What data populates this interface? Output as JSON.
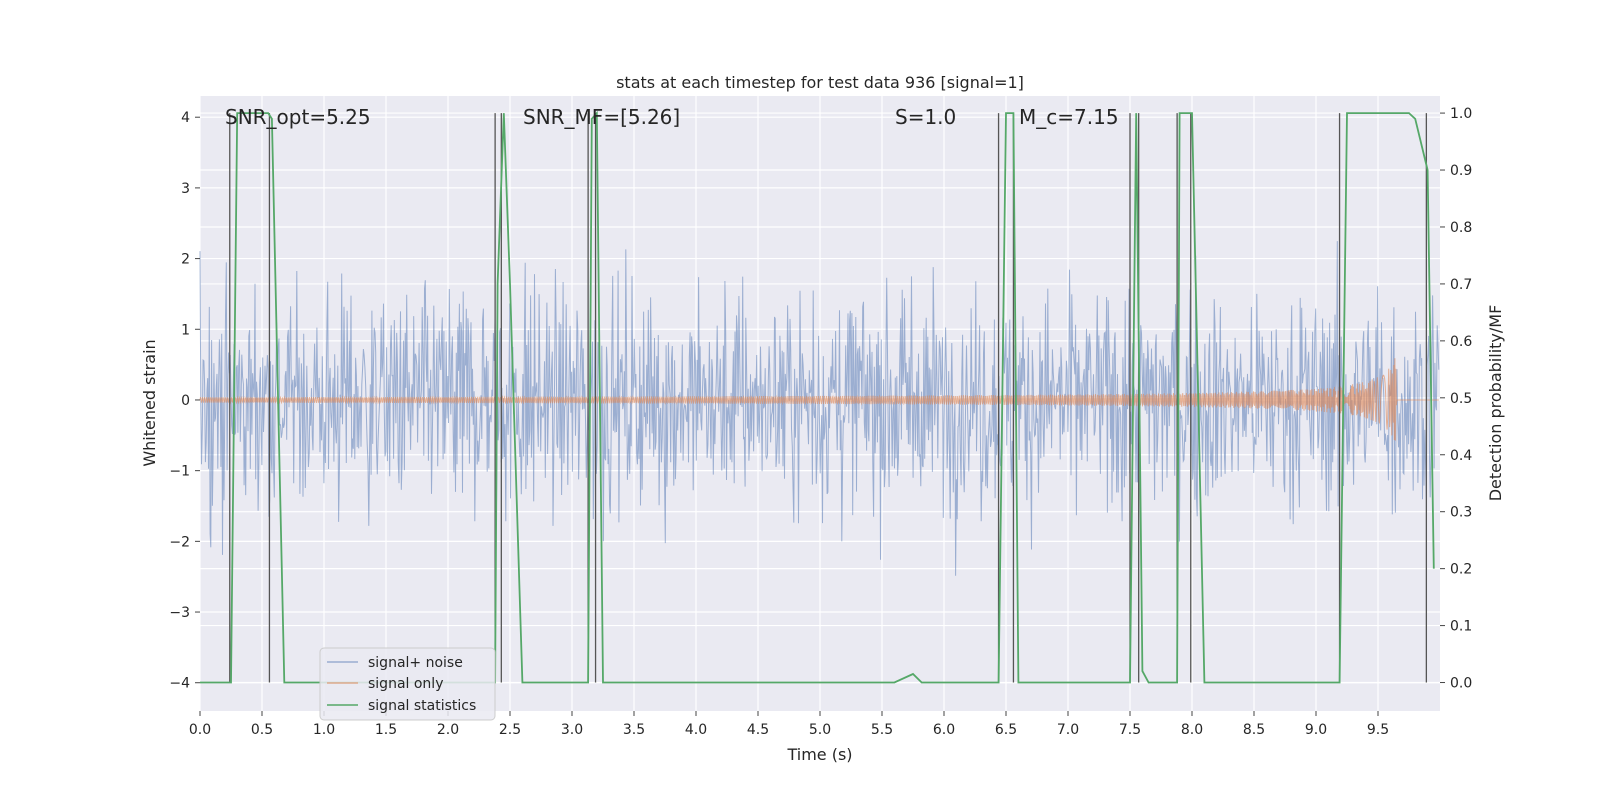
{
  "chart_data": {
    "type": "line",
    "title": "stats at each timestep for test data 936 [signal=1]",
    "xlabel": "Time (s)",
    "ylabel": "Whitened strain",
    "ylabel_right": "Detection probability/MF",
    "xlim": [
      0.0,
      10.0
    ],
    "ylim": [
      -4.4,
      4.3
    ],
    "ylim_right": [
      -0.05,
      1.03
    ],
    "x_ticks": [
      "0.0",
      "0.5",
      "1.0",
      "1.5",
      "2.0",
      "2.5",
      "3.0",
      "3.5",
      "4.0",
      "4.5",
      "5.0",
      "5.5",
      "6.0",
      "6.5",
      "7.0",
      "7.5",
      "8.0",
      "8.5",
      "9.0",
      "9.5"
    ],
    "y_ticks": [
      "−4",
      "−3",
      "−2",
      "−1",
      "0",
      "1",
      "2",
      "3",
      "4"
    ],
    "y_right_ticks": [
      "0.0",
      "0.1",
      "0.2",
      "0.3",
      "0.4",
      "0.5",
      "0.6",
      "0.7",
      "0.8",
      "0.9",
      "1.0"
    ],
    "grid": true,
    "legend_position": "lower-left",
    "annotations": [
      {
        "text": "SNR_opt=5.25",
        "x": 0.19,
        "y": 4.15
      },
      {
        "text": "SNR_MF=[5.26]",
        "x": 2.6,
        "y": 4.15
      },
      {
        "text": "S=1.0",
        "x": 5.6,
        "y": 4.15
      },
      {
        "text": "M_c=7.15",
        "x": 6.6,
        "y": 4.15
      }
    ],
    "vertical_lines": [
      0.24,
      0.56,
      2.38,
      2.43,
      3.13,
      3.19,
      6.44,
      6.56,
      7.5,
      7.57,
      7.88,
      7.99,
      9.19,
      9.89
    ],
    "series": [
      {
        "name": "signal+ noise",
        "color": "#4c72b0",
        "description_values": "noise_std_approx_1"
      },
      {
        "name": "signal only",
        "color": "#dd8452",
        "chirp_peak_time": 9.65,
        "chirp_peak_amplitude": 0.7
      },
      {
        "name": "signal statistics",
        "color": "#55a868",
        "x": [
          0.0,
          0.25,
          0.3,
          0.5,
          0.55,
          0.58,
          0.68,
          1.5,
          2.38,
          2.4,
          2.45,
          2.5,
          2.6,
          3.13,
          3.16,
          3.2,
          3.25,
          5.6,
          5.75,
          5.82,
          6.0,
          6.44,
          6.5,
          6.56,
          6.6,
          6.65,
          7.0,
          7.5,
          7.55,
          7.6,
          7.65,
          7.7,
          7.88,
          7.9,
          7.95,
          8.0,
          8.1,
          8.5,
          9.19,
          9.25,
          9.35,
          9.75,
          9.8,
          9.9,
          9.95
        ],
        "y": [
          0.0,
          0.0,
          1.0,
          1.0,
          1.0,
          0.99,
          0.0,
          0.0,
          0.0,
          0.7,
          1.0,
          0.7,
          0.0,
          0.0,
          0.99,
          1.0,
          0.0,
          0.0,
          0.015,
          0.0,
          0.0,
          0.0,
          1.0,
          1.0,
          0.0,
          0.0,
          0.0,
          0.0,
          1.0,
          0.02,
          0.0,
          0.0,
          0.0,
          1.0,
          1.0,
          1.0,
          0.0,
          0.0,
          0.0,
          1.0,
          1.0,
          1.0,
          0.99,
          0.9,
          0.2
        ]
      }
    ]
  }
}
